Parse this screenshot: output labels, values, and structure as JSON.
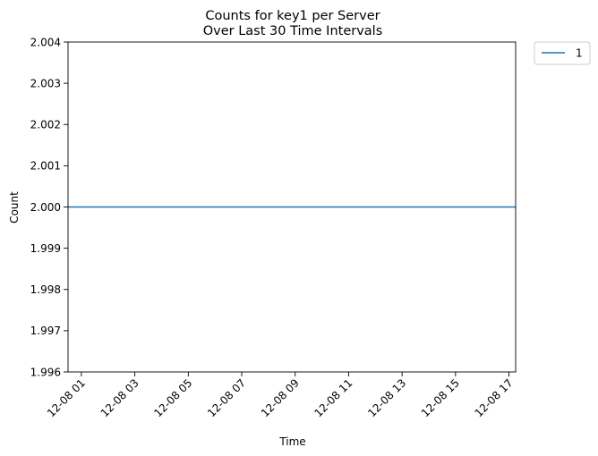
{
  "chart_data": {
    "type": "line",
    "title": "Counts for key1 per Server",
    "subtitle": "Over Last 30 Time Intervals",
    "xlabel": "Time",
    "ylabel": "Count",
    "x_type": "datetime",
    "x_tick_labels": [
      "12-08 01",
      "12-08 03",
      "12-08 05",
      "12-08 07",
      "12-08 09",
      "12-08 11",
      "12-08 13",
      "12-08 15",
      "12-08 17"
    ],
    "y_tick_labels": [
      "1.996",
      "1.997",
      "1.998",
      "1.999",
      "2.000",
      "2.001",
      "2.002",
      "2.003",
      "2.004"
    ],
    "ylim": [
      1.996,
      2.004
    ],
    "xlim": [
      "12-08 00:30",
      "12-08 17:15"
    ],
    "grid": false,
    "legend_position": "outside-top-right",
    "series": [
      {
        "name": "1",
        "color": "#1f77b4",
        "x": [
          "12-08 00:30",
          "12-08 17:15"
        ],
        "values": [
          2.0,
          2.0
        ]
      }
    ]
  }
}
